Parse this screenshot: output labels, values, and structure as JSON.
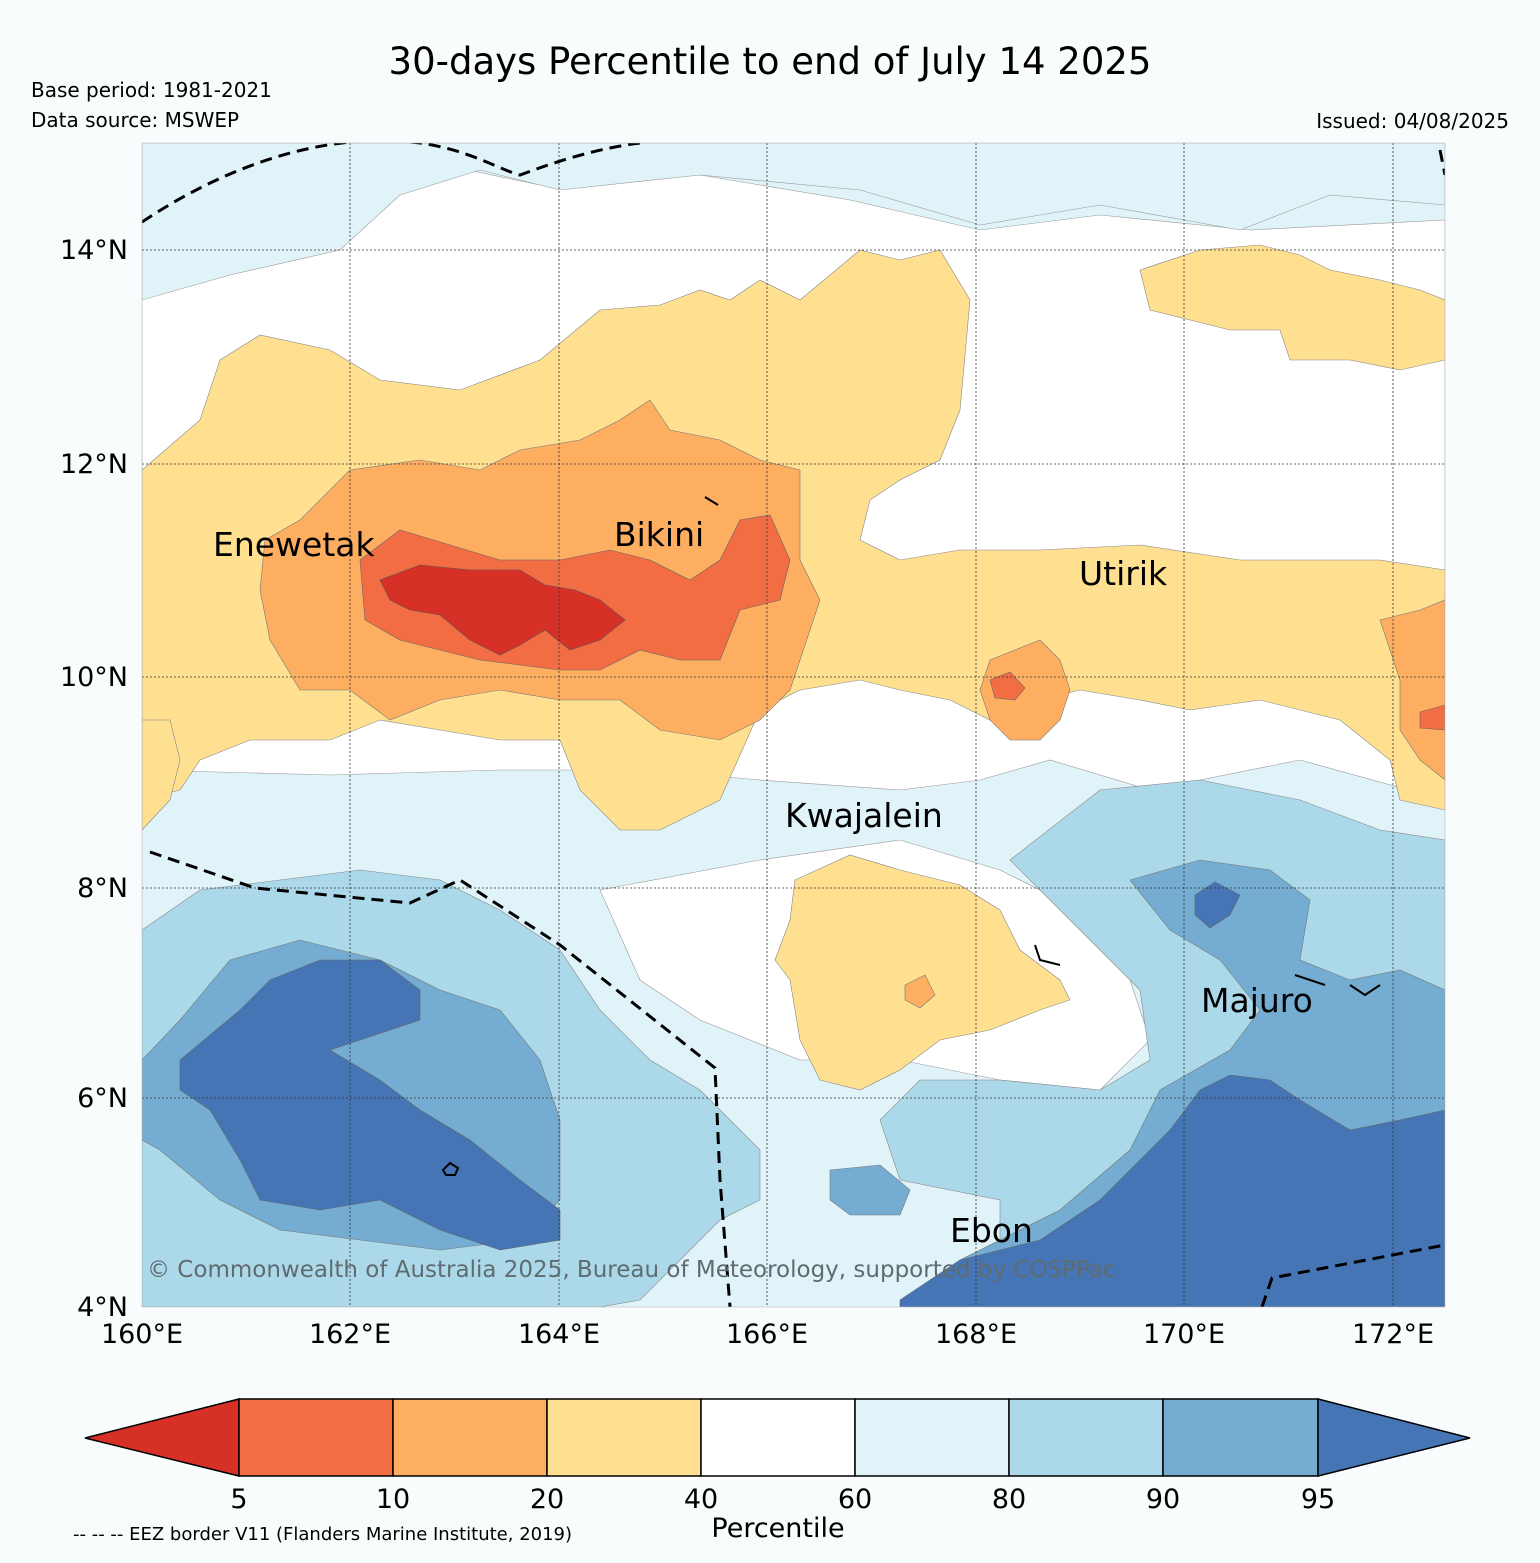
{
  "title": "30-days Percentile to end of July 14 2025",
  "base_period": "Base period: 1981-2021",
  "data_source": "Data source: MSWEP",
  "issued": "Issued: 04/08/2025",
  "map": {
    "lon_range": [
      160,
      172.5
    ],
    "lat_range": [
      4,
      15
    ],
    "lon_ticks": [
      "160°E",
      "162°E",
      "164°E",
      "166°E",
      "168°E",
      "170°E",
      "172°E"
    ],
    "lat_ticks": [
      "4°N",
      "6°N",
      "8°N",
      "10°N",
      "12°N",
      "14°N"
    ],
    "grid": true,
    "places": [
      {
        "name": "Enewetak",
        "lon": 160.7,
        "lat": 11.3
      },
      {
        "name": "Bikini",
        "lon": 164.5,
        "lat": 11.4
      },
      {
        "name": "Utirik",
        "lon": 169.0,
        "lat": 10.9
      },
      {
        "name": "Kwajalein",
        "lon": 166.2,
        "lat": 8.5
      },
      {
        "name": "Majuro",
        "lon": 170.2,
        "lat": 6.8
      },
      {
        "name": "Ebon",
        "lon": 167.7,
        "lat": 4.6
      }
    ],
    "copyright": "© Commonwealth of Australia 2025, Bureau of Meteorology, supported by COSPPac"
  },
  "colorbar": {
    "bounds": [
      "5",
      "10",
      "20",
      "40",
      "60",
      "80",
      "90",
      "95"
    ],
    "colors": [
      "#d73027",
      "#f26d43",
      "#fdae61",
      "#fee090",
      "#ffffff",
      "#e0f3f8",
      "#abd9e9",
      "#74add1",
      "#4575b4"
    ],
    "label": "Percentile"
  },
  "eez_note": "-- -- -- EEZ border V11 (Flanders Marine Institute, 2019)"
}
